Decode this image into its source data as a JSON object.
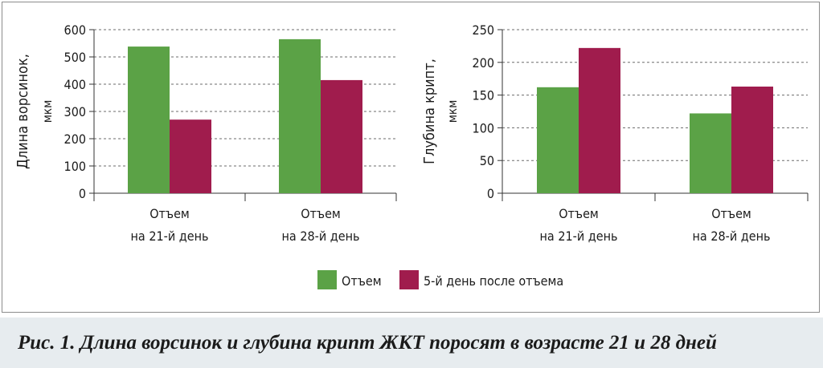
{
  "caption": "Рис. 1. Длина ворсинок и глубина крипт ЖКТ поросят в возрасте 21 и 28 дней",
  "legend": [
    {
      "label": "Отъем",
      "color": "#5ba246"
    },
    {
      "label": "5-й день после отъема",
      "color": "#a01c4d"
    }
  ],
  "chart_data": [
    {
      "type": "bar",
      "ylabel_line1": "Длина ворсинок,",
      "ylabel_line2": "мкм",
      "ylim": [
        0,
        600
      ],
      "yticks": [
        0,
        100,
        200,
        300,
        400,
        500,
        600
      ],
      "grid": true,
      "categories": [
        {
          "line1": "Отъем",
          "line2": "на 21-й день"
        },
        {
          "line1": "Отъем",
          "line2": "на 28-й день"
        }
      ],
      "series": [
        {
          "name": "Отъем",
          "values": [
            538,
            565
          ]
        },
        {
          "name": "5-й день после отъема",
          "values": [
            270,
            415
          ]
        }
      ]
    },
    {
      "type": "bar",
      "ylabel_line1": "Глубина крипт,",
      "ylabel_line2": "мкм",
      "ylim": [
        0,
        250
      ],
      "yticks": [
        0,
        50,
        100,
        150,
        200,
        250
      ],
      "grid": true,
      "categories": [
        {
          "line1": "Отъем",
          "line2": "на 21-й день"
        },
        {
          "line1": "Отъем",
          "line2": "на 28-й день"
        }
      ],
      "series": [
        {
          "name": "Отъем",
          "values": [
            162,
            122
          ]
        },
        {
          "name": "5-й день после отъема",
          "values": [
            222,
            163
          ]
        }
      ]
    }
  ]
}
